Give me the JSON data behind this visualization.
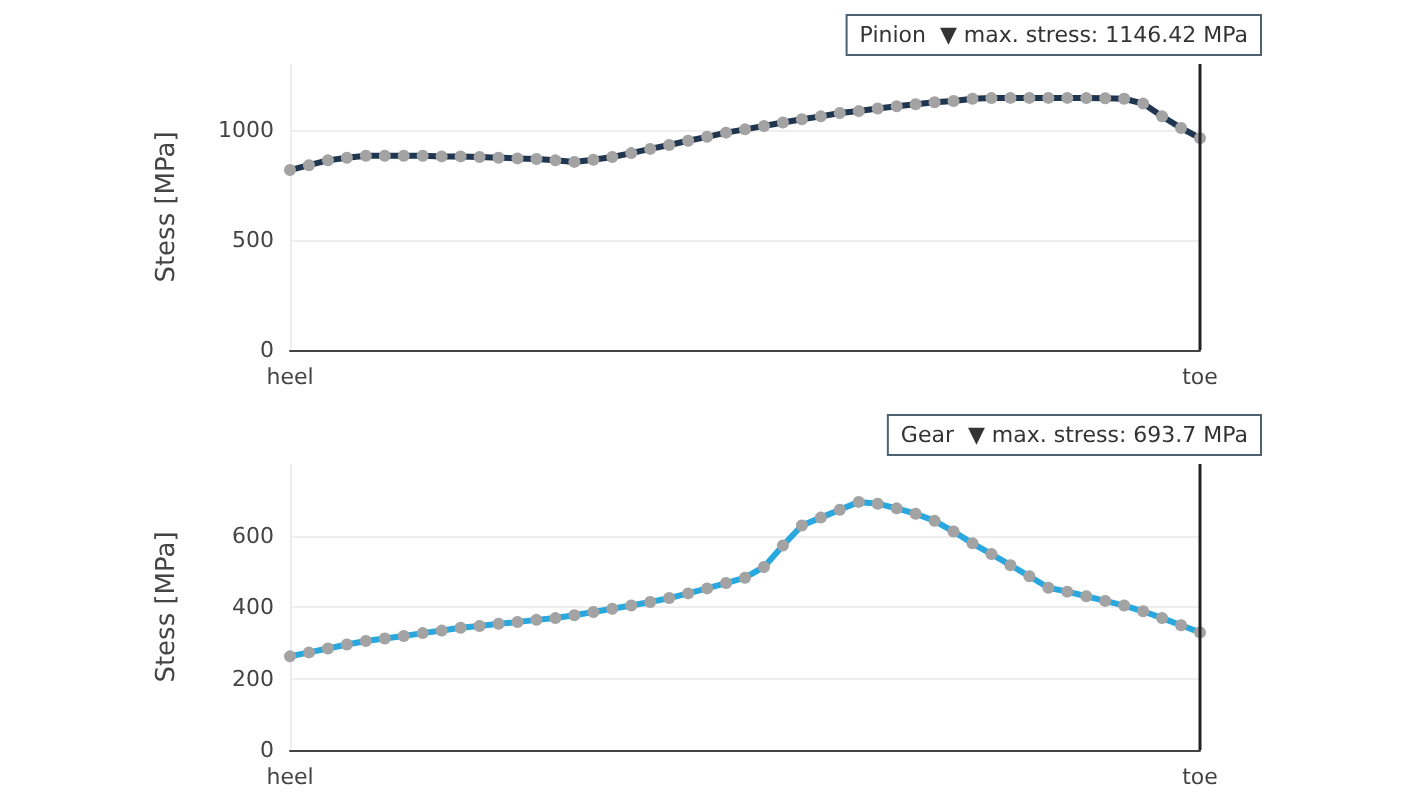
{
  "chart_data": [
    {
      "type": "line",
      "ylabel": "Stess [MPa]",
      "categories": [
        "heel",
        null,
        null,
        null,
        null,
        null,
        null,
        null,
        null,
        null,
        null,
        null,
        null,
        null,
        null,
        null,
        null,
        null,
        null,
        null,
        null,
        null,
        null,
        null,
        null,
        null,
        null,
        null,
        null,
        null,
        null,
        null,
        null,
        null,
        null,
        null,
        null,
        null,
        null,
        null,
        null,
        null,
        null,
        null,
        null,
        null,
        null,
        null,
        "toe"
      ],
      "series": [
        {
          "color": "#1f3550",
          "values": [
            818,
            840,
            862,
            874,
            883,
            883,
            883,
            883,
            880,
            880,
            877,
            874,
            871,
            868,
            862,
            855,
            865,
            877,
            895,
            914,
            932,
            951,
            969,
            988,
            1003,
            1018,
            1034,
            1049,
            1062,
            1077,
            1086,
            1098,
            1108,
            1117,
            1126,
            1132,
            1142,
            1145,
            1146,
            1146,
            1146,
            1146,
            1145,
            1144,
            1142,
            1120,
            1062,
            1009,
            963
          ]
        }
      ],
      "ylim": [
        0,
        1300
      ],
      "yticks": [
        0,
        500,
        {
          "value": 1000,
          "label": "1000"
        }
      ],
      "grid": true,
      "marker": "circle",
      "line_style": "solid",
      "ref_lines": [
        {
          "axis": "x",
          "value": "toe",
          "label": "Pinion  ▼ max. stress: 1146.42 MPa",
          "color": "#222222"
        }
      ]
    },
    {
      "type": "line",
      "ylabel": "Stess [MPa]",
      "categories": [
        "heel",
        null,
        null,
        null,
        null,
        null,
        null,
        null,
        null,
        null,
        null,
        null,
        null,
        null,
        null,
        null,
        null,
        null,
        null,
        null,
        null,
        null,
        null,
        null,
        null,
        null,
        null,
        null,
        null,
        null,
        null,
        null,
        null,
        null,
        null,
        null,
        null,
        null,
        null,
        null,
        null,
        null,
        null,
        null,
        null,
        null,
        null,
        null,
        "toe"
      ],
      "series": [
        {
          "color": "#29a8e0",
          "values": [
            262,
            273,
            284,
            295,
            305,
            312,
            319,
            327,
            334,
            342,
            347,
            353,
            358,
            364,
            369,
            377,
            386,
            395,
            404,
            414,
            425,
            438,
            452,
            467,
            482,
            512,
            572,
            628,
            650,
            672,
            694,
            689,
            676,
            661,
            641,
            611,
            578,
            548,
            517,
            486,
            454,
            443,
            430,
            417,
            404,
            388,
            369,
            349,
            329
          ]
        }
      ],
      "ylim": [
        0,
        800
      ],
      "yticks": [
        0,
        200,
        400,
        600
      ],
      "grid": true,
      "marker": "circle",
      "line_style": "solid",
      "ref_lines": [
        {
          "axis": "x",
          "value": "toe",
          "label": "Gear  ▼ max. stress: 693.7 MPa",
          "color": "#222222"
        }
      ]
    }
  ]
}
